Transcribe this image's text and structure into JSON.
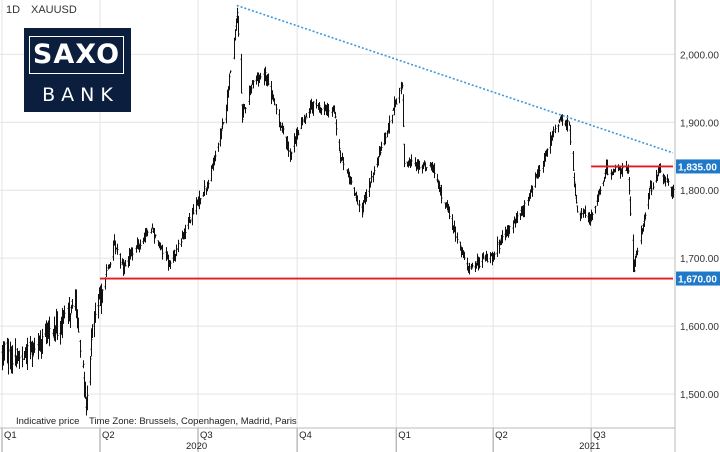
{
  "header": {
    "interval": "1D",
    "symbol": "XAUUSD"
  },
  "logo": {
    "line1": "SAXO",
    "line2": "BANK"
  },
  "footer": {
    "indicative": "Indicative price",
    "timezone": "Time Zone: Brussels, Copenhagen, Madrid, Paris"
  },
  "colors": {
    "candle": "#111111",
    "support": "#e41a1c",
    "trendline": "#3a98e0",
    "grid": "#e4e4e4",
    "price_box": "#1f78c8"
  },
  "chart_data": {
    "type": "candlestick",
    "ylim": [
      1450,
      2080
    ],
    "y_ticks": [
      {
        "value": 1500,
        "label": "1,500.00"
      },
      {
        "value": 1600,
        "label": "1,600.00"
      },
      {
        "value": 1700,
        "label": "1,700.00"
      },
      {
        "value": 1800,
        "label": "1,800.00"
      },
      {
        "value": 1900,
        "label": "1,900.00"
      },
      {
        "value": 2000,
        "label": "2,000.00"
      }
    ],
    "quarter_ticks": [
      {
        "date": "2020-01-01",
        "label": "Q1"
      },
      {
        "date": "2020-04-01",
        "label": "Q2"
      },
      {
        "date": "2020-07-01",
        "label": "Q3"
      },
      {
        "date": "2020-10-01",
        "label": "Q4"
      },
      {
        "date": "2021-01-01",
        "label": "Q1"
      },
      {
        "date": "2021-04-01",
        "label": "Q2"
      },
      {
        "date": "2021-07-01",
        "label": "Q3"
      }
    ],
    "year_labels": [
      {
        "date": "2020-07-01",
        "label": "2020"
      },
      {
        "date": "2021-07-01",
        "label": "2021"
      }
    ],
    "x_range": [
      "2020-01-01",
      "2021-09-15"
    ],
    "price_path": [
      [
        "2020-01-01",
        1560
      ],
      [
        "2020-01-20",
        1555
      ],
      [
        "2020-02-05",
        1580
      ],
      [
        "2020-02-24",
        1600
      ],
      [
        "2020-03-09",
        1640
      ],
      [
        "2020-03-16",
        1530
      ],
      [
        "2020-03-19",
        1470
      ],
      [
        "2020-03-25",
        1600
      ],
      [
        "2020-04-14",
        1720
      ],
      [
        "2020-04-22",
        1690
      ],
      [
        "2020-05-18",
        1745
      ],
      [
        "2020-06-05",
        1690
      ],
      [
        "2020-06-25",
        1765
      ],
      [
        "2020-07-10",
        1810
      ],
      [
        "2020-07-27",
        1920
      ],
      [
        "2020-08-06",
        2065
      ],
      [
        "2020-08-11",
        1910
      ],
      [
        "2020-08-20",
        1960
      ],
      [
        "2020-09-01",
        1970
      ],
      [
        "2020-09-24",
        1855
      ],
      [
        "2020-10-12",
        1925
      ],
      [
        "2020-11-04",
        1915
      ],
      [
        "2020-11-09",
        1855
      ],
      [
        "2020-11-30",
        1770
      ],
      [
        "2020-12-21",
        1880
      ],
      [
        "2021-01-06",
        1955
      ],
      [
        "2021-01-08",
        1840
      ],
      [
        "2021-02-03",
        1835
      ],
      [
        "2021-03-08",
        1685
      ],
      [
        "2021-03-31",
        1705
      ],
      [
        "2021-04-30",
        1775
      ],
      [
        "2021-06-01",
        1905
      ],
      [
        "2021-06-10",
        1895
      ],
      [
        "2021-06-17",
        1775
      ],
      [
        "2021-06-29",
        1755
      ],
      [
        "2021-07-15",
        1830
      ],
      [
        "2021-08-04",
        1830
      ],
      [
        "2021-08-09",
        1680
      ],
      [
        "2021-08-24",
        1800
      ],
      [
        "2021-09-03",
        1830
      ],
      [
        "2021-09-15",
        1795
      ]
    ],
    "lines": [
      {
        "name": "downtrend",
        "from": [
          "2020-08-06",
          2072
        ],
        "to": [
          "2021-09-15",
          1855
        ]
      },
      {
        "name": "support",
        "from": [
          "2020-04-01",
          1670
        ],
        "to": [
          "2021-09-15",
          1670
        ],
        "label": "1,670.00"
      },
      {
        "name": "resistance",
        "from": [
          "2021-07-01",
          1835
        ],
        "to": [
          "2021-09-15",
          1835
        ],
        "label": "1,835.00"
      }
    ]
  }
}
